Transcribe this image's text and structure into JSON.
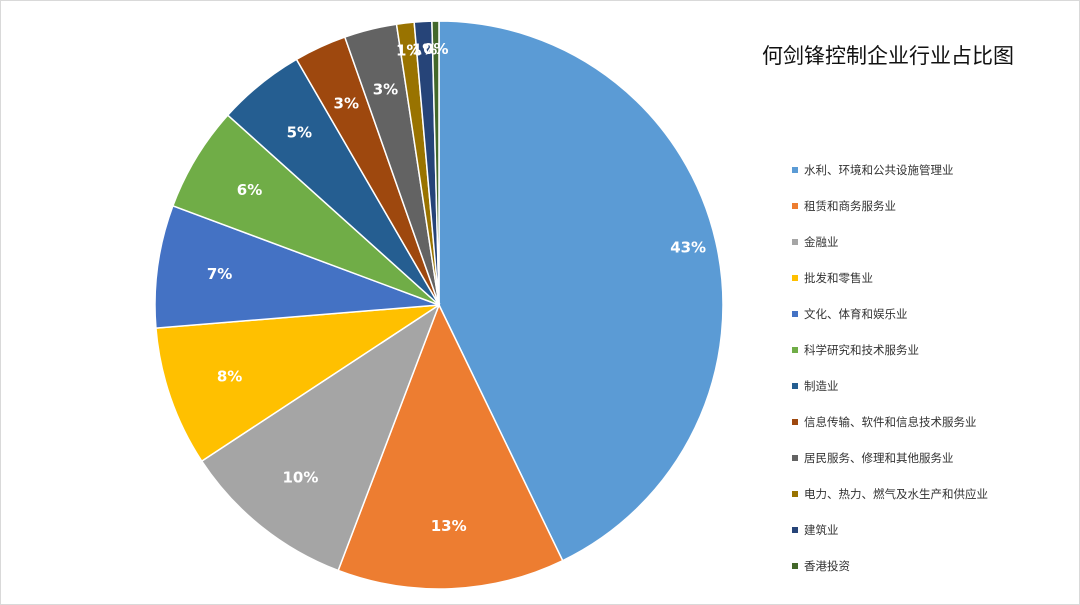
{
  "chart_data": {
    "type": "pie",
    "title": "何剑锋控制企业行业占比图",
    "legend_position": "right",
    "categories": [
      "水利、环境和公共设施管理业",
      "租赁和商务服务业",
      "金融业",
      "批发和零售业",
      "文化、体育和娱乐业",
      "科学研究和技术服务业",
      "制造业",
      "信息传输、软件和信息技术服务业",
      "居民服务、修理和其他服务业",
      "电力、热力、燃气及水生产和供应业",
      "建筑业",
      "香港投资"
    ],
    "values": [
      43,
      13,
      10,
      8,
      7,
      6,
      5,
      3,
      3,
      1,
      1,
      0.4
    ],
    "labels": [
      "43%",
      "13%",
      "10%",
      "8%",
      "7%",
      "6%",
      "5%",
      "3%",
      "3%",
      "1%",
      "1%",
      "0%"
    ],
    "colors": [
      "#5b9bd5",
      "#ed7d31",
      "#a5a5a5",
      "#ffc000",
      "#4472c4",
      "#70ad47",
      "#255e91",
      "#9e480e",
      "#636363",
      "#997300",
      "#264478",
      "#43682b"
    ]
  }
}
